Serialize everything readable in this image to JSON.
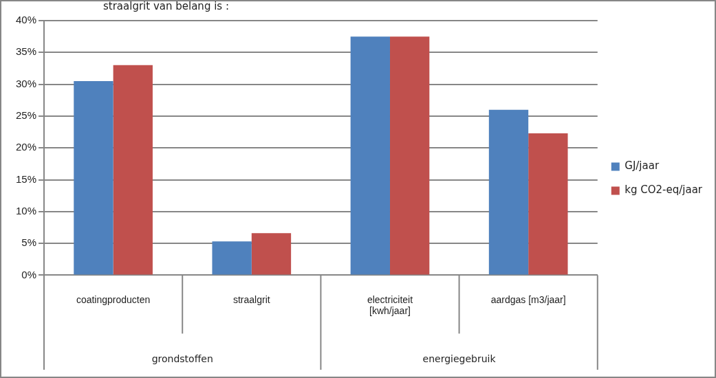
{
  "chart_data": {
    "type": "bar",
    "categories": [
      "coatingproducten",
      "straalgrit",
      "electriciteit [kwh/jaar]",
      "aardgas [m3/jaar]"
    ],
    "series": [
      {
        "name": "GJ/jaar",
        "color": "#4f81bd",
        "values": [
          30.5,
          5.3,
          37.5,
          26
        ]
      },
      {
        "name": "kg CO2-eq/jaar",
        "color": "#c0504d",
        "values": [
          33,
          6.6,
          37.5,
          22.3
        ]
      }
    ],
    "ylim": [
      0,
      40
    ],
    "yticks": [
      {
        "value": 0,
        "label": "0%"
      },
      {
        "value": 5,
        "label": "5%"
      },
      {
        "value": 10,
        "label": "10%"
      },
      {
        "value": 15,
        "label": "15%"
      },
      {
        "value": 20,
        "label": "20%"
      },
      {
        "value": 25,
        "label": "25%"
      },
      {
        "value": 30,
        "label": "30%"
      },
      {
        "value": 35,
        "label": "35%"
      },
      {
        "value": 40,
        "label": "40%"
      }
    ],
    "grid": "y",
    "legend": "right",
    "annotations": [
      "straalgrit van belang is :",
      "grondstoffen",
      "energiegebruik"
    ]
  }
}
